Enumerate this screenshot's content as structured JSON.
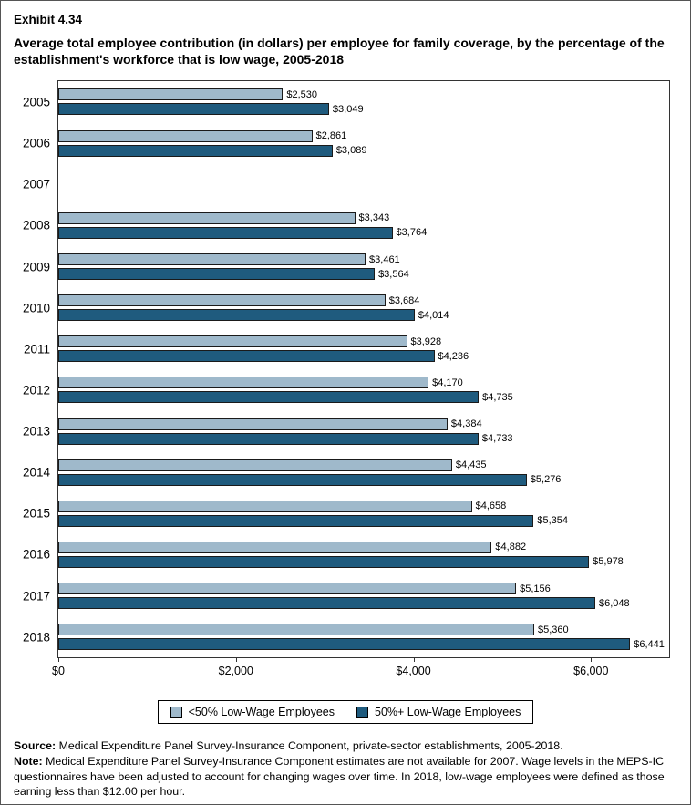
{
  "header": {
    "exhibit": "Exhibit 4.34",
    "title": "Average total employee contribution (in dollars) per employee for family coverage, by the percentage of the establishment's workforce that is low wage, 2005-2018"
  },
  "chart_data": {
    "type": "bar",
    "orientation": "horizontal",
    "title": "Average total employee contribution (in dollars) per employee for family coverage, by the percentage of the establishment's workforce that is low wage, 2005-2018",
    "categories": [
      "2005",
      "2006",
      "2007",
      "2008",
      "2009",
      "2010",
      "2011",
      "2012",
      "2013",
      "2014",
      "2015",
      "2016",
      "2017",
      "2018"
    ],
    "series": [
      {
        "key": "under-50-low-wage",
        "name": "<50% Low-Wage Employees",
        "color": "#9fb9cb",
        "values": [
          2530,
          2861,
          null,
          3343,
          3461,
          3684,
          3928,
          4170,
          4384,
          4435,
          4658,
          4882,
          5156,
          5360
        ]
      },
      {
        "key": "50-plus-low-wage",
        "name": "50%+ Low-Wage Employees",
        "color": "#1f5b7e",
        "values": [
          3049,
          3089,
          null,
          3764,
          3564,
          4014,
          4236,
          4735,
          4733,
          5276,
          5354,
          5978,
          6048,
          6441
        ]
      }
    ],
    "value_labels": true,
    "value_prefix": "$",
    "xlabel": "",
    "ylabel": "",
    "xlim": [
      0,
      6880
    ],
    "xticks": [
      {
        "value": 0,
        "label": "$0"
      },
      {
        "value": 2000,
        "label": "$2,000"
      },
      {
        "value": 4000,
        "label": "$4,000"
      },
      {
        "value": 6000,
        "label": "$6,000"
      }
    ],
    "grid": false,
    "legend_position": "bottom",
    "missing_data_note": "2007 estimates not available"
  },
  "footer": {
    "source_label": "Source:",
    "source_text": " Medical Expenditure Panel Survey-Insurance Component, private-sector establishments, 2005-2018.",
    "note_label": "Note:",
    "note_text": " Medical Expenditure Panel Survey-Insurance Component estimates are not available for 2007. Wage levels in the MEPS-IC questionnaires have been adjusted to account for changing wages over time. In 2018, low-wage employees were defined as those earning less than $12.00 per hour."
  }
}
